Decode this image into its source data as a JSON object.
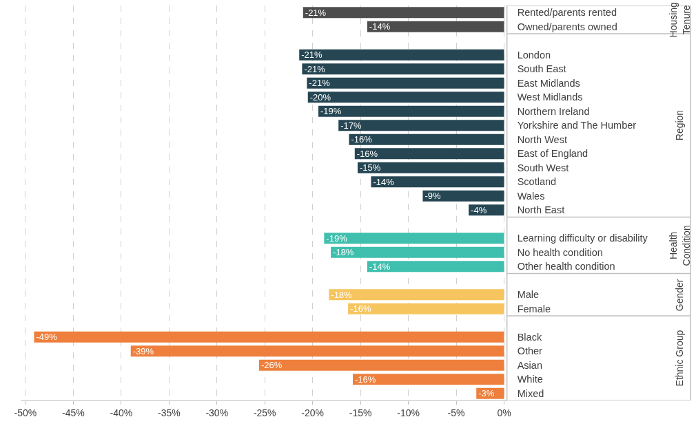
{
  "chart_data": {
    "type": "bar",
    "orientation": "horizontal",
    "categories": [
      "Rented/parents rented",
      "Owned/parents owned",
      "London",
      "South East",
      "East Midlands",
      "West Midlands",
      "Northern Ireland",
      "Yorkshire and The Humber",
      "North West",
      "East of England",
      "South West",
      "Scotland",
      "Wales",
      "North East",
      "Learning difficulty or disability",
      "No health condition",
      "Other health condition",
      "Male",
      "Female",
      "Black",
      "Other",
      "Asian",
      "White",
      "Mixed"
    ],
    "values": [
      -21.0,
      -14.3,
      -21.4,
      -21.1,
      -20.6,
      -20.5,
      -19.4,
      -17.3,
      -16.2,
      -15.6,
      -15.3,
      -13.9,
      -8.5,
      -3.7,
      -18.8,
      -18.1,
      -14.3,
      -18.3,
      -16.3,
      -49.1,
      -39.0,
      -25.6,
      -15.8,
      -2.9
    ],
    "value_labels": [
      "-21%",
      "-14%",
      "-21%",
      "-21%",
      "-21%",
      "-20%",
      "-19%",
      "-17%",
      "-16%",
      "-16%",
      "-15%",
      "-14%",
      "-9%",
      "-4%",
      "-19%",
      "-18%",
      "-14%",
      "-18%",
      "-16%",
      "-49%",
      "-39%",
      "-26%",
      "-16%",
      "-3%"
    ],
    "colors": [
      "#4d4d4d",
      "#4d4d4d",
      "#264653",
      "#264653",
      "#264653",
      "#264653",
      "#264653",
      "#264653",
      "#264653",
      "#264653",
      "#264653",
      "#264653",
      "#264653",
      "#264653",
      "#3fbfad",
      "#3fbfad",
      "#3fbfad",
      "#f6c55f",
      "#f6c55f",
      "#ee7f3c",
      "#ee7f3c",
      "#ee7f3c",
      "#ee7f3c",
      "#ee7f3c"
    ],
    "annotations": [
      "Housing Tenure",
      "Region",
      "Health Condition",
      "Gender",
      "Ethnic Group"
    ],
    "xlim": [
      -50.5,
      0.3
    ],
    "xticks": [
      {
        "value": -50,
        "label": "-50%"
      },
      {
        "value": -45,
        "label": "-45%"
      },
      {
        "value": -40,
        "label": "-40%"
      },
      {
        "value": -35,
        "label": "-35%"
      },
      {
        "value": -30,
        "label": "-30%"
      },
      {
        "value": -25,
        "label": "-25%"
      },
      {
        "value": -20,
        "label": "-20%"
      },
      {
        "value": -15,
        "label": "-15%"
      },
      {
        "value": -10,
        "label": "-10%"
      },
      {
        "value": -5,
        "label": "-5%"
      },
      {
        "value": 0,
        "label": "0%"
      }
    ],
    "grid": "x"
  }
}
